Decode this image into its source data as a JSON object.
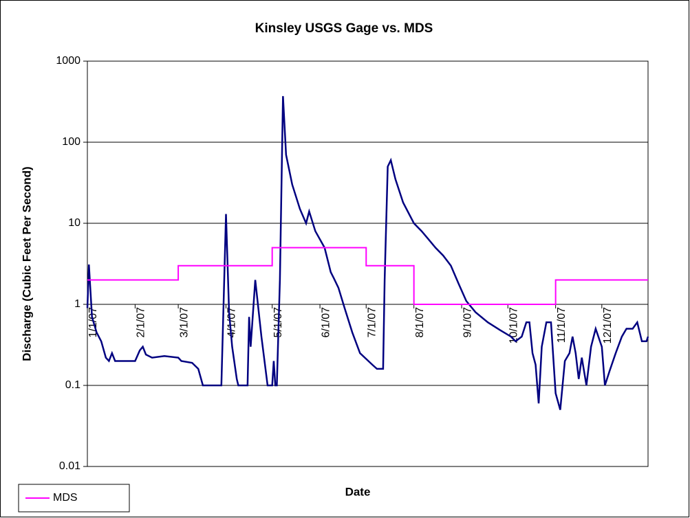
{
  "chart_data": {
    "type": "line",
    "title": "Kinsley USGS Gage vs. MDS",
    "x_label": "Date",
    "y_label": "Discharge (Cubic Feet Per Second)",
    "log_scale_y": true,
    "grid": true,
    "legend": "bottom-left",
    "xlim": [
      "2007-01-01",
      "2007-12-31"
    ],
    "xticks": [
      {
        "value": "2007-01-01",
        "label": "1/1/07"
      },
      {
        "value": "2007-02-01",
        "label": "2/1/07"
      },
      {
        "value": "2007-03-01",
        "label": "3/1/07"
      },
      {
        "value": "2007-04-01",
        "label": "4/1/07"
      },
      {
        "value": "2007-05-01",
        "label": "5/1/07"
      },
      {
        "value": "2007-06-01",
        "label": "6/1/07"
      },
      {
        "value": "2007-07-01",
        "label": "7/1/07"
      },
      {
        "value": "2007-08-01",
        "label": "8/1/07"
      },
      {
        "value": "2007-09-01",
        "label": "9/1/07"
      },
      {
        "value": "2007-10-01",
        "label": "10/1/07"
      },
      {
        "value": "2007-11-01",
        "label": "11/1/07"
      },
      {
        "value": "2007-12-01",
        "label": "12/1/07"
      }
    ],
    "ylim": [
      0.01,
      1000
    ],
    "yticks": [
      0.01,
      0.1,
      1,
      10,
      100,
      1000
    ],
    "series": [
      {
        "color": "#000080",
        "x": [
          "2007-01-01",
          "2007-01-02",
          "2007-01-04",
          "2007-01-07",
          "2007-01-10",
          "2007-01-13",
          "2007-01-15",
          "2007-01-17",
          "2007-01-19",
          "2007-02-01",
          "2007-02-04",
          "2007-02-06",
          "2007-02-08",
          "2007-02-12",
          "2007-02-20",
          "2007-03-01",
          "2007-03-03",
          "2007-03-10",
          "2007-03-14",
          "2007-03-17",
          "2007-03-29",
          "2007-04-01",
          "2007-04-03",
          "2007-04-05",
          "2007-04-08",
          "2007-04-09",
          "2007-04-15",
          "2007-04-16",
          "2007-04-17",
          "2007-04-20",
          "2007-04-24",
          "2007-04-28",
          "2007-05-01",
          "2007-05-02",
          "2007-05-03",
          "2007-05-04",
          "2007-05-06",
          "2007-05-08",
          "2007-05-10",
          "2007-05-14",
          "2007-05-19",
          "2007-05-23",
          "2007-05-25",
          "2007-05-29",
          "2007-06-04",
          "2007-06-08",
          "2007-06-10",
          "2007-06-13",
          "2007-06-17",
          "2007-06-22",
          "2007-06-27",
          "2007-07-05",
          "2007-07-08",
          "2007-07-12",
          "2007-07-13",
          "2007-07-15",
          "2007-07-17",
          "2007-07-20",
          "2007-07-25",
          "2007-08-01",
          "2007-08-06",
          "2007-08-10",
          "2007-08-15",
          "2007-08-20",
          "2007-08-25",
          "2007-08-30",
          "2007-09-04",
          "2007-09-10",
          "2007-09-18",
          "2007-09-26",
          "2007-10-03",
          "2007-10-06",
          "2007-10-10",
          "2007-10-13",
          "2007-10-15",
          "2007-10-17",
          "2007-10-19",
          "2007-10-21",
          "2007-10-23",
          "2007-10-26",
          "2007-10-29",
          "2007-11-01",
          "2007-11-04",
          "2007-11-07",
          "2007-11-10",
          "2007-11-12",
          "2007-11-14",
          "2007-11-16",
          "2007-11-18",
          "2007-11-21",
          "2007-11-24",
          "2007-11-27",
          "2007-12-01",
          "2007-12-03",
          "2007-12-06",
          "2007-12-10",
          "2007-12-14",
          "2007-12-17",
          "2007-12-21",
          "2007-12-24",
          "2007-12-27",
          "2007-12-30",
          "2007-12-31"
        ],
        "values": [
          0.9,
          3.1,
          0.7,
          0.45,
          0.35,
          0.22,
          0.2,
          0.25,
          0.2,
          0.2,
          0.27,
          0.3,
          0.24,
          0.22,
          0.23,
          0.22,
          0.2,
          0.19,
          0.16,
          0.1,
          0.1,
          13,
          0.8,
          0.3,
          0.12,
          0.1,
          0.1,
          0.7,
          0.3,
          2,
          0.4,
          0.1,
          0.1,
          0.2,
          0.1,
          0.1,
          2,
          370,
          70,
          30,
          15,
          10,
          14,
          8,
          5,
          2.5,
          2.1,
          1.6,
          0.9,
          0.45,
          0.25,
          0.18,
          0.16,
          0.16,
          2,
          50,
          60,
          35,
          18,
          10,
          8,
          6.5,
          5,
          4,
          3,
          1.8,
          1.1,
          0.8,
          0.6,
          0.48,
          0.4,
          0.35,
          0.4,
          0.6,
          0.6,
          0.25,
          0.18,
          0.06,
          0.3,
          0.6,
          0.6,
          0.08,
          0.05,
          0.2,
          0.25,
          0.4,
          0.25,
          0.12,
          0.22,
          0.1,
          0.3,
          0.5,
          0.3,
          0.1,
          0.15,
          0.25,
          0.4,
          0.5,
          0.5,
          0.6,
          0.35,
          0.35,
          0.4
        ]
      },
      {
        "name": "MDS",
        "color": "#ff00ff",
        "x": [
          "2007-01-01",
          "2007-03-01",
          "2007-03-01",
          "2007-05-01",
          "2007-05-01",
          "2007-07-01",
          "2007-07-01",
          "2007-08-01",
          "2007-08-01",
          "2007-11-01",
          "2007-11-01",
          "2007-12-31"
        ],
        "values": [
          2,
          2,
          3,
          3,
          5,
          5,
          3,
          3,
          1,
          1,
          2,
          2
        ]
      }
    ]
  }
}
